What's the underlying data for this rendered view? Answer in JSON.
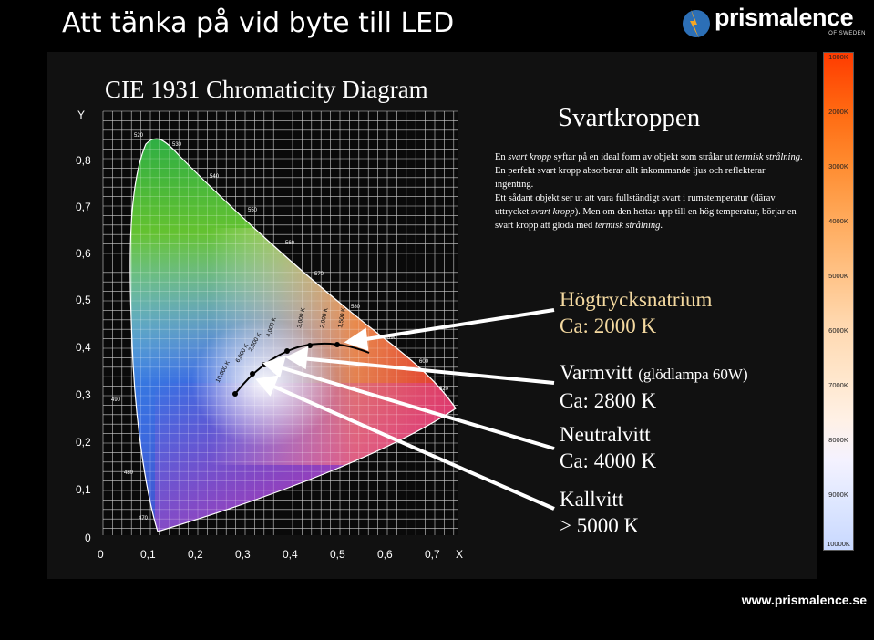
{
  "slide": {
    "title": "Att tänka på vid byte till LED",
    "footer_url": "www.prismalence.se"
  },
  "logo": {
    "name": "prismalence",
    "subtitle": "OF SWEDEN"
  },
  "cie": {
    "title": "CIE 1931 Chromaticity Diagram",
    "y_axis_label": "Y",
    "x_axis_label": "X",
    "y_ticks": [
      "0,8",
      "0,7",
      "0,6",
      "0,5",
      "0,4",
      "0,3",
      "0,2",
      "0,1",
      "0"
    ],
    "x_ticks": [
      "0",
      "0,1",
      "0,2",
      "0,3",
      "0,4",
      "0,5",
      "0,6",
      "0,7"
    ],
    "wavelengths": [
      "520",
      "530",
      "540",
      "550",
      "560",
      "570",
      "580",
      "590",
      "600",
      "620",
      "490",
      "480",
      "470"
    ],
    "locus_labels": [
      "1,500 K",
      "2,000 K",
      "2,500 K",
      "3,000 K",
      "4,000 K",
      "6,000 K",
      "10,000 K"
    ]
  },
  "svartkroppen": {
    "title": "Svartkroppen",
    "p1": [
      {
        "t": "En ",
        "i": false
      },
      {
        "t": "svart kropp",
        "i": true
      },
      {
        "t": " syftar på en ideal form av objekt som strålar ut ",
        "i": false
      },
      {
        "t": "termisk strålning",
        "i": true
      },
      {
        "t": ". En perfekt svart kropp absorberar allt inkommande ljus och reflekterar ingenting.",
        "i": false
      }
    ],
    "p2": [
      {
        "t": "Ett sådant objekt ser ut att vara fullständigt svart i rumstemperatur (därav uttrycket ",
        "i": false
      },
      {
        "t": "svart kropp",
        "i": true
      },
      {
        "t": "). Men om den hettas upp till en hög temperatur, börjar en svart kropp att glöda med ",
        "i": false
      },
      {
        "t": "termisk strålning",
        "i": true
      },
      {
        "t": ".",
        "i": false
      }
    ]
  },
  "labels": {
    "hps_1": "Högtrycksnatrium",
    "hps_2": "Ca: 2000 K",
    "warm_1": "Varmvitt",
    "warm_1b": "(glödlampa 60W)",
    "warm_2": "Ca: 2800 K",
    "neutral_1": "Neutralvitt",
    "neutral_2": "Ca: 4000 K",
    "cold_1": "Kallvitt",
    "cold_2": "> 5000 K"
  },
  "kelvin_scale": [
    "1000K",
    "2000K",
    "3000K",
    "4000K",
    "5000K",
    "6000K",
    "7000K",
    "8000K",
    "9000K",
    "10000K"
  ],
  "colors": {
    "background": "#000000",
    "panel": "#111111",
    "hps_label": "#f4d9a0",
    "arrow": "#ffffff"
  }
}
